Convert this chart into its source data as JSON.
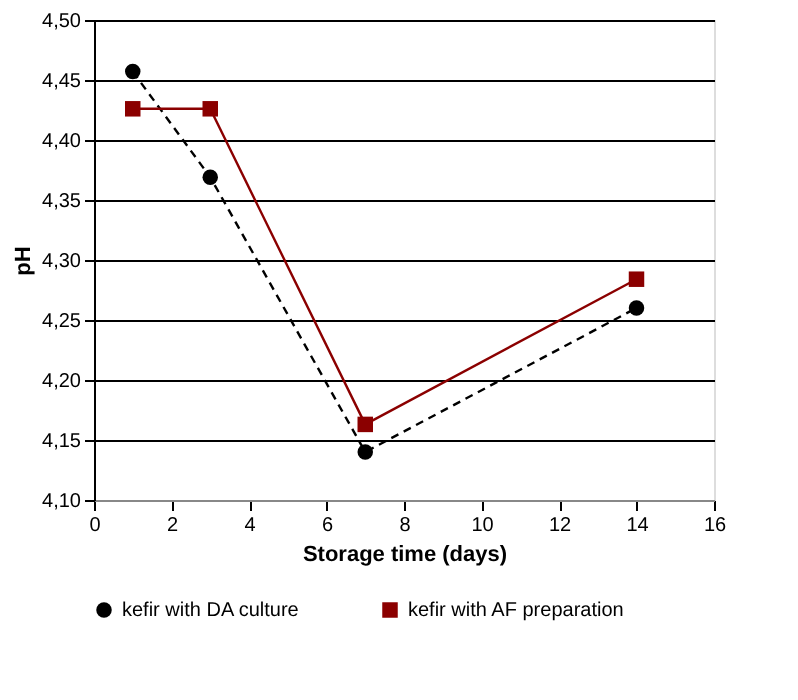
{
  "chart_data": {
    "type": "line",
    "xlabel": "Storage time (days)",
    "ylabel": "pH",
    "x": [
      1,
      3,
      7,
      14
    ],
    "series": [
      {
        "name": "kefir with DA culture",
        "color": "#000000",
        "values": [
          4.457,
          4.369,
          4.14,
          4.26
        ],
        "marker": "circle",
        "line_style": "dashed"
      },
      {
        "name": "kefir with AF preparation",
        "color": "#8b0000",
        "values": [
          4.426,
          4.426,
          4.163,
          4.284
        ],
        "marker": "square",
        "line_style": "solid"
      }
    ],
    "xlim": [
      0,
      16
    ],
    "xticks": [
      0,
      2,
      4,
      6,
      8,
      10,
      12,
      14,
      16
    ],
    "ylim": [
      4.1,
      4.5
    ],
    "yticks": [
      {
        "value": 4.1,
        "label": "4,10"
      },
      {
        "value": 4.15,
        "label": "4,15"
      },
      {
        "value": 4.2,
        "label": "4,20"
      },
      {
        "value": 4.25,
        "label": "4,25"
      },
      {
        "value": 4.3,
        "label": "4,30"
      },
      {
        "value": 4.35,
        "label": "4,35"
      },
      {
        "value": 4.4,
        "label": "4,40"
      },
      {
        "value": 4.45,
        "label": "4,45"
      },
      {
        "value": 4.5,
        "label": "4,50"
      }
    ],
    "grid": "y",
    "legend": "bottom"
  }
}
